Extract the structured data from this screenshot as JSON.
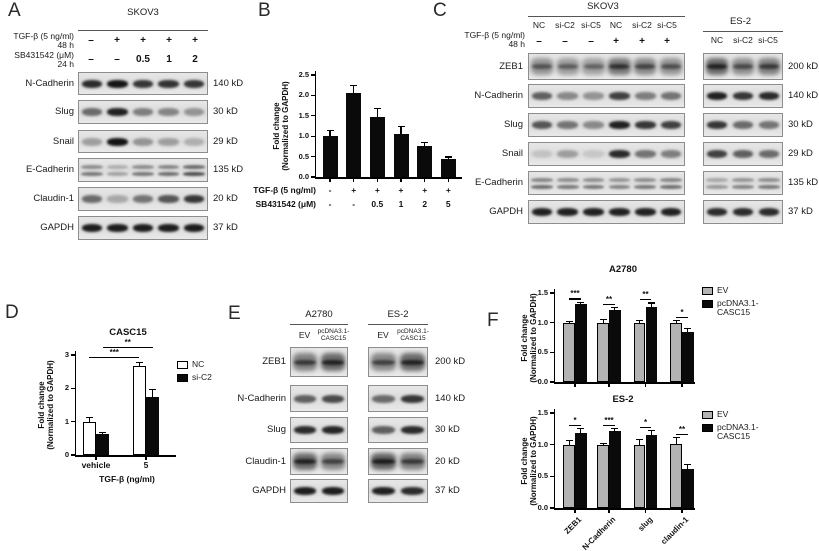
{
  "panels": {
    "A": {
      "label": "A",
      "cell_line": "SKOV3",
      "treatments": [
        {
          "label": "TGF-β (5 ng/ml)",
          "duration": "48 h",
          "values": [
            "–",
            "+",
            "+",
            "+",
            "+"
          ]
        },
        {
          "label": "SB431542 (μM)",
          "duration": "24 h",
          "values": [
            "–",
            "–",
            "0.5",
            "1",
            "2"
          ]
        }
      ],
      "blots": [
        {
          "protein": "N-Cadherin",
          "mw": "140 kD",
          "style": "band",
          "bands": [
            0.85,
            0.96,
            0.8,
            0.82,
            0.8
          ]
        },
        {
          "protein": "Slug",
          "mw": "30 kD",
          "style": "band",
          "bands": [
            0.55,
            0.9,
            0.45,
            0.42,
            0.35
          ]
        },
        {
          "protein": "Snail",
          "mw": "29 kD",
          "style": "band",
          "bands": [
            0.3,
            0.97,
            0.35,
            0.3,
            0.22
          ]
        },
        {
          "protein": "E-Cadherin",
          "mw": "135 kD",
          "style": "multi",
          "bands": [
            0.5,
            0.3,
            0.5,
            0.55,
            0.7
          ]
        },
        {
          "protein": "Claudin-1",
          "mw": "20 kD",
          "style": "band",
          "bands": [
            0.55,
            0.25,
            0.5,
            0.65,
            0.8
          ]
        },
        {
          "protein": "GAPDH",
          "mw": "37 kD",
          "style": "band",
          "bands": [
            0.92,
            0.92,
            0.92,
            0.92,
            0.92
          ]
        }
      ]
    },
    "B": {
      "label": "B"
    },
    "C": {
      "label": "C",
      "skov3": {
        "cell_line": "SKOV3",
        "lanes": [
          "NC",
          "si-C2",
          "si-C5",
          "NC",
          "si-C2",
          "si-C5"
        ]
      },
      "es2": {
        "cell_line": "ES-2",
        "lanes": [
          "NC",
          "si-C2",
          "si-C5"
        ]
      },
      "treatment": {
        "label": "TGF-β (5 ng/ml)",
        "duration": "48 h",
        "values": [
          "–",
          "–",
          "–",
          "+",
          "+",
          "+"
        ]
      },
      "blots": [
        {
          "protein": "ZEB1",
          "mw": "200 kD",
          "style": "smear",
          "skov3_bands": [
            0.5,
            0.45,
            0.42,
            0.7,
            0.58,
            0.52
          ],
          "es2_bands": [
            0.8,
            0.55,
            0.65
          ]
        },
        {
          "protein": "N-Cadherin",
          "mw": "140 kD",
          "style": "band",
          "skov3_bands": [
            0.6,
            0.4,
            0.35,
            0.75,
            0.45,
            0.5
          ],
          "es2_bands": [
            0.9,
            0.8,
            0.85
          ]
        },
        {
          "protein": "Slug",
          "mw": "30 kD",
          "style": "band",
          "skov3_bands": [
            0.65,
            0.5,
            0.4,
            0.9,
            0.8,
            0.75
          ],
          "es2_bands": [
            0.8,
            0.55,
            0.5
          ]
        },
        {
          "protein": "Snail",
          "mw": "29 kD",
          "style": "band",
          "skov3_bands": [
            0.12,
            0.3,
            0.1,
            0.85,
            0.5,
            0.45
          ],
          "es2_bands": [
            0.75,
            0.6,
            0.55
          ]
        },
        {
          "protein": "E-Cadherin",
          "mw": "135 kD",
          "style": "multi",
          "skov3_bands": [
            0.55,
            0.5,
            0.5,
            0.45,
            0.5,
            0.55
          ],
          "es2_bands": [
            0.35,
            0.45,
            0.5
          ]
        },
        {
          "protein": "GAPDH",
          "mw": "37 kD",
          "style": "band",
          "skov3_bands": [
            0.9,
            0.9,
            0.9,
            0.9,
            0.9,
            0.9
          ],
          "es2_bands": [
            0.85,
            0.85,
            0.85
          ]
        }
      ]
    },
    "D": {
      "label": "D"
    },
    "E": {
      "label": "E",
      "groups": [
        {
          "cell_line": "A2780",
          "lanes": [
            [
              "EV"
            ],
            [
              "pcDNA3.1-",
              "CASC15"
            ]
          ]
        },
        {
          "cell_line": "ES-2",
          "lanes": [
            [
              "EV"
            ],
            [
              "pcDNA3.1-",
              "CASC15"
            ]
          ]
        }
      ],
      "blots": [
        {
          "protein": "ZEB1",
          "mw": "200 kD",
          "style": "smear",
          "a2780_bands": [
            0.65,
            0.8
          ],
          "es2_bands": [
            0.6,
            0.8
          ]
        },
        {
          "protein": "N-Cadherin",
          "mw": "140 kD",
          "style": "band",
          "a2780_bands": [
            0.6,
            0.7
          ],
          "es2_bands": [
            0.55,
            0.8
          ]
        },
        {
          "protein": "Slug",
          "mw": "30 kD",
          "style": "band",
          "a2780_bands": [
            0.85,
            0.88
          ],
          "es2_bands": [
            0.6,
            0.85
          ]
        },
        {
          "protein": "Claudin-1",
          "mw": "20 kD",
          "style": "smear",
          "a2780_bands": [
            0.8,
            0.6
          ],
          "es2_bands": [
            0.85,
            0.65
          ]
        },
        {
          "protein": "GAPDH",
          "mw": "37 kD",
          "style": "band",
          "a2780_bands": [
            0.92,
            0.92
          ],
          "es2_bands": [
            0.9,
            0.85
          ]
        }
      ]
    },
    "F": {
      "label": "F"
    }
  },
  "chart_data": [
    {
      "id": "panel-B",
      "type": "bar",
      "title": "",
      "ylabel_line1": "Fold change",
      "ylabel_line2": "(Normalized to GAPDH)",
      "ylim": [
        0,
        2.5
      ],
      "yticks": [
        "0.0",
        "0.5",
        "1.0",
        "1.5",
        "2.0",
        "2.5"
      ],
      "values": [
        1.0,
        2.05,
        1.47,
        1.06,
        0.77,
        0.45
      ],
      "errors": [
        0.13,
        0.2,
        0.2,
        0.17,
        0.08,
        0.04
      ],
      "bar_color": "#0a0a0a",
      "x_rows": [
        {
          "label": "TGF-β (5 ng/ml)",
          "values": [
            "-",
            "+",
            "+",
            "+",
            "+",
            "+"
          ]
        },
        {
          "label": "SB431542 (μM)",
          "values": [
            "-",
            "-",
            "0.5",
            "1",
            "2",
            "5"
          ]
        }
      ],
      "grid": false
    },
    {
      "id": "panel-D",
      "type": "grouped_bar",
      "title": "CASC15",
      "ylabel_line1": "Fold change",
      "ylabel_line2": "(Normalized to GAPDH)",
      "xlabel": "TGF-β (ng/ml)",
      "ylim": [
        0,
        3
      ],
      "yticks": [
        "0",
        "1",
        "2",
        "3"
      ],
      "categories": [
        "vehicle",
        "5"
      ],
      "series": [
        {
          "name": "NC",
          "fill": "#ffffff",
          "values": [
            1.0,
            2.67
          ],
          "errors": [
            0.13,
            0.1
          ]
        },
        {
          "name": "si-C2",
          "fill": "#0a0a0a",
          "values": [
            0.63,
            1.75
          ],
          "errors": [
            0.04,
            0.22
          ]
        }
      ],
      "legend": [
        "NC",
        "si-C2"
      ],
      "significance": [
        {
          "label": "***",
          "series": 0,
          "from_cat": 0,
          "to_cat": 1
        },
        {
          "label": "**",
          "series": 1,
          "from_cat": 0,
          "to_cat": 1
        }
      ],
      "grid": false
    },
    {
      "id": "panel-F-A2780",
      "type": "grouped_bar",
      "title": "A2780",
      "ylabel_line1": "Fold change",
      "ylabel_line2": "(Normalized to GAPDH)",
      "ylim": [
        0,
        1.5
      ],
      "yticks": [
        "0.0",
        "0.5",
        "1.0",
        "1.5"
      ],
      "categories": [
        "ZEB1",
        "N-Cadherin",
        "slug",
        "claudin-1"
      ],
      "show_category_labels": false,
      "series": [
        {
          "name": "EV",
          "fill": "#b3b3b3",
          "values": [
            1.0,
            1.0,
            1.0,
            1.0
          ],
          "errors": [
            0.02,
            0.05,
            0.04,
            0.03
          ]
        },
        {
          "name": "pcDNA3.1-CASC15",
          "fill": "#0a0a0a",
          "values": [
            1.32,
            1.22,
            1.27,
            0.85
          ],
          "errors": [
            0.02,
            0.03,
            0.06,
            0.05
          ]
        }
      ],
      "legend": [
        "EV",
        "pcDNA3.1-CASC15"
      ],
      "significance_per_group": [
        "***",
        "**",
        "**",
        "*"
      ],
      "grid": false
    },
    {
      "id": "panel-F-ES2",
      "type": "grouped_bar",
      "title": "ES-2",
      "ylabel_line1": "Fold change",
      "ylabel_line2": "(Normalized to GAPDH)",
      "ylim": [
        0,
        1.5
      ],
      "yticks": [
        "0.0",
        "0.5",
        "1.0",
        "1.5"
      ],
      "categories": [
        "ZEB1",
        "N-Cadherin",
        "slug",
        "claudin-1"
      ],
      "show_category_labels": true,
      "series": [
        {
          "name": "EV",
          "fill": "#b3b3b3",
          "values": [
            1.0,
            1.0,
            1.0,
            1.01
          ],
          "errors": [
            0.06,
            0.02,
            0.08,
            0.1
          ]
        },
        {
          "name": "pcDNA3.1-CASC15",
          "fill": "#0a0a0a",
          "values": [
            1.18,
            1.22,
            1.16,
            0.61
          ],
          "errors": [
            0.07,
            0.03,
            0.06,
            0.08
          ]
        }
      ],
      "legend": [
        "EV",
        "pcDNA3.1-CASC15"
      ],
      "significance_per_group": [
        "*",
        "***",
        "*",
        "**"
      ],
      "grid": false
    }
  ]
}
